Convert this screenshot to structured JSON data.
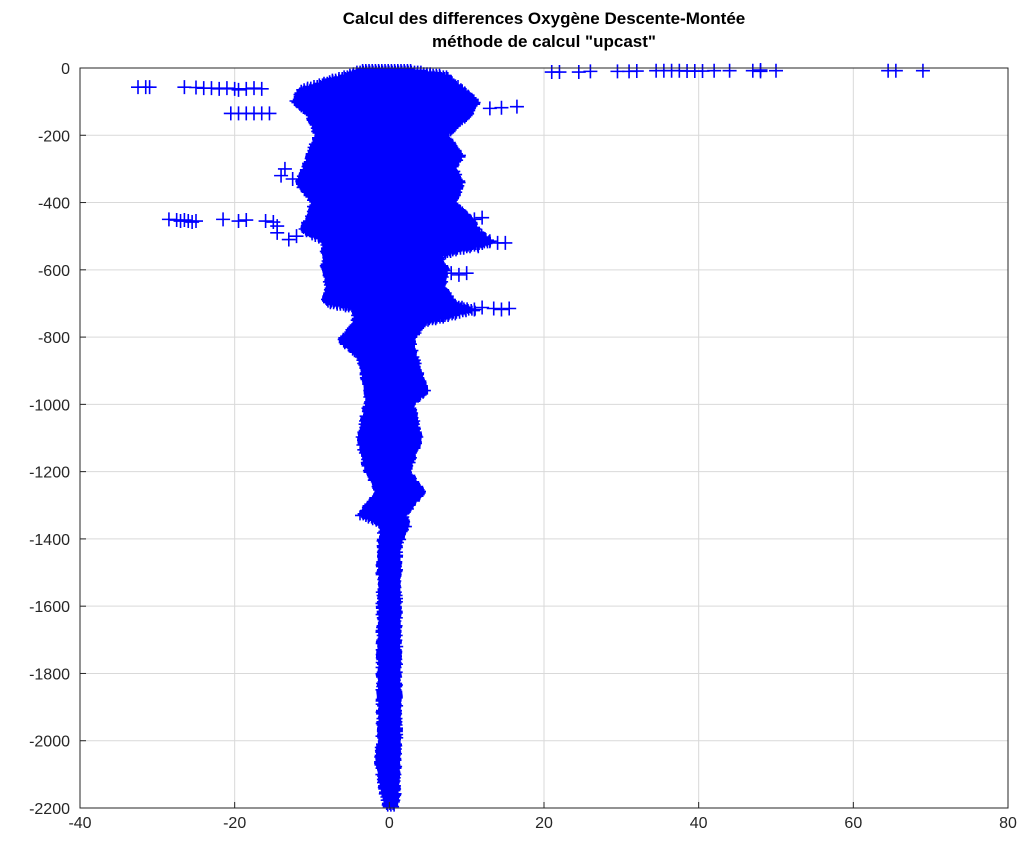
{
  "chart_data": {
    "type": "scatter",
    "title": "Calcul des differences Oxygène Descente-Montée",
    "subtitle": "méthode de calcul \"upcast\"",
    "xlabel": "",
    "ylabel": "",
    "xlim": [
      -40,
      80
    ],
    "ylim": [
      -2200,
      0
    ],
    "xticks": [
      "-40",
      "-20",
      "0",
      "20",
      "40",
      "60",
      "80"
    ],
    "yticks": [
      "0",
      "-200",
      "-400",
      "-600",
      "-800",
      "-1000",
      "-1200",
      "-1400",
      "-1600",
      "-1800",
      "-2000",
      "-2200"
    ],
    "grid": true,
    "marker": "+",
    "color": "#0000ff",
    "envelope": [
      {
        "y": 0,
        "left": -4.0,
        "right": 3.0
      },
      {
        "y": -20,
        "left": -6.5,
        "right": 8.0
      },
      {
        "y": -60,
        "left": -12.0,
        "right": 10.0
      },
      {
        "y": -100,
        "left": -13.0,
        "right": 12.0
      },
      {
        "y": -140,
        "left": -11.0,
        "right": 11.0
      },
      {
        "y": -200,
        "left": -10.0,
        "right": 8.0
      },
      {
        "y": -260,
        "left": -11.0,
        "right": 10.0
      },
      {
        "y": -300,
        "left": -11.5,
        "right": 9.0
      },
      {
        "y": -340,
        "left": -12.5,
        "right": 10.0
      },
      {
        "y": -400,
        "left": -10.5,
        "right": 9.0
      },
      {
        "y": -440,
        "left": -11.0,
        "right": 11.0
      },
      {
        "y": -480,
        "left": -12.0,
        "right": 12.0
      },
      {
        "y": -520,
        "left": -9.0,
        "right": 14.0
      },
      {
        "y": -560,
        "left": -9.0,
        "right": 7.0
      },
      {
        "y": -600,
        "left": -9.0,
        "right": 8.0
      },
      {
        "y": -650,
        "left": -8.5,
        "right": 7.5
      },
      {
        "y": -700,
        "left": -9.0,
        "right": 9.0
      },
      {
        "y": -720,
        "left": -5.0,
        "right": 12.0
      },
      {
        "y": -760,
        "left": -5.0,
        "right": 5.0
      },
      {
        "y": -810,
        "left": -7.0,
        "right": 3.5
      },
      {
        "y": -860,
        "left": -4.5,
        "right": 4.0
      },
      {
        "y": -900,
        "left": -4.0,
        "right": 4.5
      },
      {
        "y": -960,
        "left": -3.5,
        "right": 5.5
      },
      {
        "y": -1000,
        "left": -3.5,
        "right": 3.5
      },
      {
        "y": -1100,
        "left": -4.5,
        "right": 4.5
      },
      {
        "y": -1200,
        "left": -3.5,
        "right": 3.0
      },
      {
        "y": -1260,
        "left": -2.0,
        "right": 5.0
      },
      {
        "y": -1330,
        "left": -4.5,
        "right": 2.5
      },
      {
        "y": -1360,
        "left": -1.5,
        "right": 3.0
      },
      {
        "y": -1420,
        "left": -1.8,
        "right": 1.8
      },
      {
        "y": -1600,
        "left": -1.8,
        "right": 1.8
      },
      {
        "y": -1800,
        "left": -1.8,
        "right": 1.8
      },
      {
        "y": -2000,
        "left": -1.8,
        "right": 1.8
      },
      {
        "y": -2060,
        "left": -2.2,
        "right": 1.8
      },
      {
        "y": -2200,
        "left": -1.0,
        "right": 1.5
      }
    ],
    "outliers": [
      {
        "x": -32.5,
        "y": -57
      },
      {
        "x": -31.5,
        "y": -57
      },
      {
        "x": -31.0,
        "y": -57
      },
      {
        "x": -26.5,
        "y": -57
      },
      {
        "x": -25.0,
        "y": -58
      },
      {
        "x": -24.0,
        "y": -60
      },
      {
        "x": -23.0,
        "y": -60
      },
      {
        "x": -22.0,
        "y": -62
      },
      {
        "x": -21.0,
        "y": -60
      },
      {
        "x": -20.0,
        "y": -62
      },
      {
        "x": -19.5,
        "y": -65
      },
      {
        "x": -18.5,
        "y": -62
      },
      {
        "x": -17.5,
        "y": -60
      },
      {
        "x": -16.5,
        "y": -62
      },
      {
        "x": -20.5,
        "y": -135
      },
      {
        "x": -19.5,
        "y": -135
      },
      {
        "x": -18.5,
        "y": -135
      },
      {
        "x": -17.5,
        "y": -135
      },
      {
        "x": -16.5,
        "y": -135
      },
      {
        "x": -15.5,
        "y": -135
      },
      {
        "x": -28.5,
        "y": -450
      },
      {
        "x": -27.5,
        "y": -452
      },
      {
        "x": -27.0,
        "y": -455
      },
      {
        "x": -26.5,
        "y": -452
      },
      {
        "x": -26.0,
        "y": -455
      },
      {
        "x": -25.5,
        "y": -458
      },
      {
        "x": -25.0,
        "y": -455
      },
      {
        "x": -21.5,
        "y": -450
      },
      {
        "x": -19.5,
        "y": -455
      },
      {
        "x": -18.5,
        "y": -452
      },
      {
        "x": -16.0,
        "y": -455
      },
      {
        "x": -15.0,
        "y": -458
      },
      {
        "x": -14.5,
        "y": -470
      },
      {
        "x": -14.5,
        "y": -490
      },
      {
        "x": -13.0,
        "y": -510
      },
      {
        "x": -12.0,
        "y": -500
      },
      {
        "x": -14.0,
        "y": -320
      },
      {
        "x": -13.5,
        "y": -300
      },
      {
        "x": -12.5,
        "y": -330
      },
      {
        "x": 13.0,
        "y": -120
      },
      {
        "x": 14.5,
        "y": -118
      },
      {
        "x": 16.5,
        "y": -115
      },
      {
        "x": 14.0,
        "y": -520
      },
      {
        "x": 15.0,
        "y": -520
      },
      {
        "x": 13.0,
        "y": -515
      },
      {
        "x": 11.5,
        "y": -530
      },
      {
        "x": 13.5,
        "y": -715
      },
      {
        "x": 14.5,
        "y": -718
      },
      {
        "x": 15.5,
        "y": -715
      },
      {
        "x": 12.0,
        "y": -712
      },
      {
        "x": 11.0,
        "y": -718
      },
      {
        "x": 10.0,
        "y": -610
      },
      {
        "x": 9.0,
        "y": -615
      },
      {
        "x": 8.0,
        "y": -610
      },
      {
        "x": 11.0,
        "y": -450
      },
      {
        "x": 12.0,
        "y": -445
      },
      {
        "x": 21.0,
        "y": -12
      },
      {
        "x": 22.0,
        "y": -12
      },
      {
        "x": 24.5,
        "y": -12
      },
      {
        "x": 26.0,
        "y": -10
      },
      {
        "x": 29.5,
        "y": -10
      },
      {
        "x": 31.0,
        "y": -10
      },
      {
        "x": 32.0,
        "y": -9
      },
      {
        "x": 34.5,
        "y": -8
      },
      {
        "x": 35.5,
        "y": -8
      },
      {
        "x": 36.5,
        "y": -8
      },
      {
        "x": 37.5,
        "y": -8
      },
      {
        "x": 38.5,
        "y": -9
      },
      {
        "x": 39.5,
        "y": -9
      },
      {
        "x": 40.5,
        "y": -9
      },
      {
        "x": 42.0,
        "y": -8
      },
      {
        "x": 44.0,
        "y": -8
      },
      {
        "x": 47.0,
        "y": -8
      },
      {
        "x": 48.0,
        "y": -6
      },
      {
        "x": 48.0,
        "y": -10
      },
      {
        "x": 50.0,
        "y": -8
      },
      {
        "x": 64.5,
        "y": -8
      },
      {
        "x": 65.5,
        "y": -8
      },
      {
        "x": 69.0,
        "y": -8
      }
    ]
  }
}
